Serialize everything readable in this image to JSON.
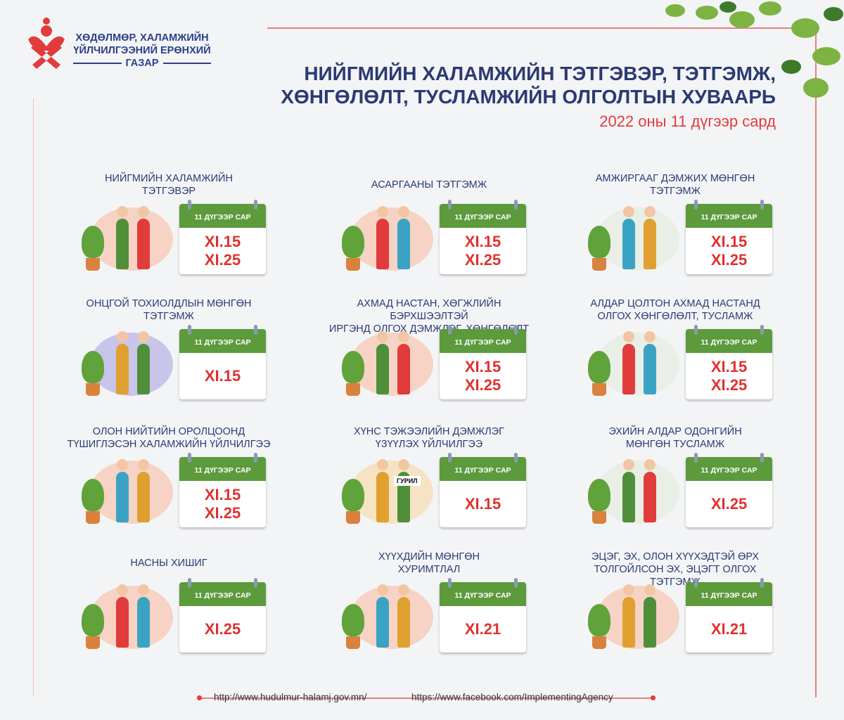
{
  "logo": {
    "line1": "ХӨДӨЛМӨР, ХАЛАМЖИЙН",
    "line2": "ҮЙЛЧИЛГЭЭНИЙ ЕРӨНХИЙ",
    "line3": "ГАЗАР",
    "color": "#e23b3b"
  },
  "header": {
    "title1": "НИЙГМИЙН ХАЛАМЖИЙН ТЭТГЭВЭР, ТЭТГЭМЖ,",
    "title2": "ХӨНГӨЛӨЛТ, ТУСЛАМЖИЙН ОЛГОЛТЫН ХУВААРЬ",
    "subtitle": "2022 оны 11 дүгээр сард"
  },
  "calendar_header": "11 ДҮГЭЭР САР",
  "items": [
    {
      "title1": "НИЙГМИЙН ХАЛАМЖИЙН",
      "title2": "ТЭТГЭВЭР",
      "dates": [
        "XI.15",
        "XI.25"
      ]
    },
    {
      "title1": "АСАРГААНЫ ТЭТГЭМЖ",
      "title2": "",
      "dates": [
        "XI.15",
        "XI.25"
      ]
    },
    {
      "title1": "АМЖИРГААГ ДЭМЖИХ МӨНГӨН",
      "title2": "ТЭТГЭМЖ",
      "dates": [
        "XI.15",
        "XI.25"
      ]
    },
    {
      "title1": "ОНЦГОЙ ТОХИОЛДЛЫН МӨНГӨН",
      "title2": "ТЭТГЭМЖ",
      "dates": [
        "XI.15"
      ]
    },
    {
      "title1": "АХМАД НАСТАН, ХӨГЖЛИЙН БЭРХШЭЭЛТЭЙ",
      "title2": "ИРГЭНД ОЛГОХ ДЭМЖЛЭГ, ХӨНГӨЛӨЛТ",
      "dates": [
        "XI.15",
        "XI.25"
      ]
    },
    {
      "title1": "АЛДАР ЦОЛТОН АХМАД НАСТАНД",
      "title2": "ОЛГОХ ХӨНГӨЛӨЛТ, ТУСЛАМЖ",
      "dates": [
        "XI.15",
        "XI.25"
      ]
    },
    {
      "title1": "ОЛОН НИЙТИЙН ОРОЛЦООНД",
      "title2": "ТҮШИГЛЭСЭН ХАЛАМЖИЙН ҮЙЛЧИЛГЭЭ",
      "dates": [
        "XI.15",
        "XI.25"
      ]
    },
    {
      "title1": "ХҮНС ТЭЖЭЭЛИЙН ДЭМЖЛЭГ",
      "title2": "ҮЗҮҮЛЭХ ҮЙЛЧИЛГЭЭ",
      "dates": [
        "XI.15"
      ],
      "label": "ГУРИЛ"
    },
    {
      "title1": "ЭХИЙН АЛДАР ОДОНГИЙН",
      "title2": "МӨНГӨН ТУСЛАМЖ",
      "dates": [
        "XI.25"
      ]
    },
    {
      "title1": "НАСНЫ ХИШИГ",
      "title2": "",
      "dates": [
        "XI.25"
      ]
    },
    {
      "title1": "ХҮҮХДИЙН МӨНГӨН",
      "title2": "ХУРИМТЛАЛ",
      "dates": [
        "XI.21"
      ]
    },
    {
      "title1": "ЭЦЭГ, ЭХ, ОЛОН ХҮҮХЭДТЭЙ ӨРХ",
      "title2": "ТОЛГОЙЛСОН ЭХ, ЭЦЭГТ ОЛГОХ ТЭТГЭМЖ",
      "dates": [
        "XI.21"
      ]
    }
  ],
  "footer": {
    "website": "http://www.hudulmur-halamj.gov.mn/",
    "facebook": "https://www.facebook.com/ImplementingAgency"
  },
  "colors": {
    "navy": "#2b3a72",
    "red": "#e23b3b",
    "green": "#5c9a3c"
  }
}
